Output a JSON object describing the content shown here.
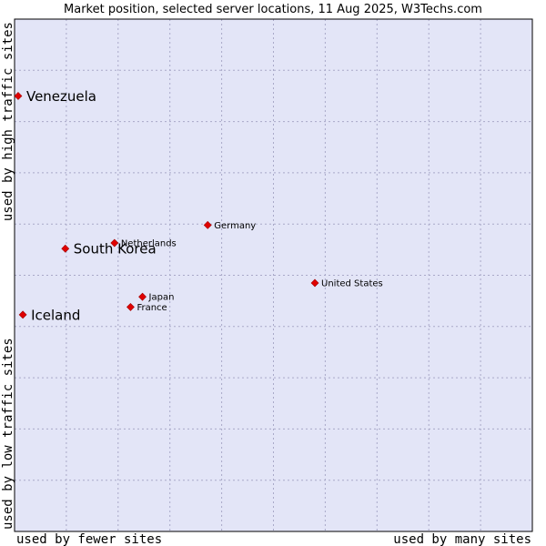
{
  "chart_data": {
    "type": "scatter",
    "title": "Market position, selected server locations, 11 Aug 2025, W3Techs.com",
    "xlabel_left": "used by fewer sites",
    "xlabel_right": "used by many sites",
    "ylabel_bottom": "used by low traffic sites",
    "ylabel_top": "used by high traffic sites",
    "xlim": [
      0,
      10
    ],
    "ylim": [
      0,
      10
    ],
    "grid": true,
    "colors": {
      "plot_bg": "#e3e5f7",
      "grid": "#a9a9c8",
      "frame": "#000000",
      "point": "#e00000"
    },
    "points": [
      {
        "label": "Venezuela",
        "x": 0.07,
        "y": 8.5,
        "emphasis": true
      },
      {
        "label": "South Korea",
        "x": 0.98,
        "y": 5.52,
        "emphasis": true
      },
      {
        "label": "Iceland",
        "x": 0.16,
        "y": 4.23,
        "emphasis": true
      },
      {
        "label": "Netherlands",
        "x": 1.93,
        "y": 5.63,
        "emphasis": false
      },
      {
        "label": "Germany",
        "x": 3.73,
        "y": 5.98,
        "emphasis": false
      },
      {
        "label": "United States",
        "x": 5.8,
        "y": 4.85,
        "emphasis": false
      },
      {
        "label": "Japan",
        "x": 2.47,
        "y": 4.58,
        "emphasis": false
      },
      {
        "label": "France",
        "x": 2.24,
        "y": 4.38,
        "emphasis": false
      }
    ]
  }
}
